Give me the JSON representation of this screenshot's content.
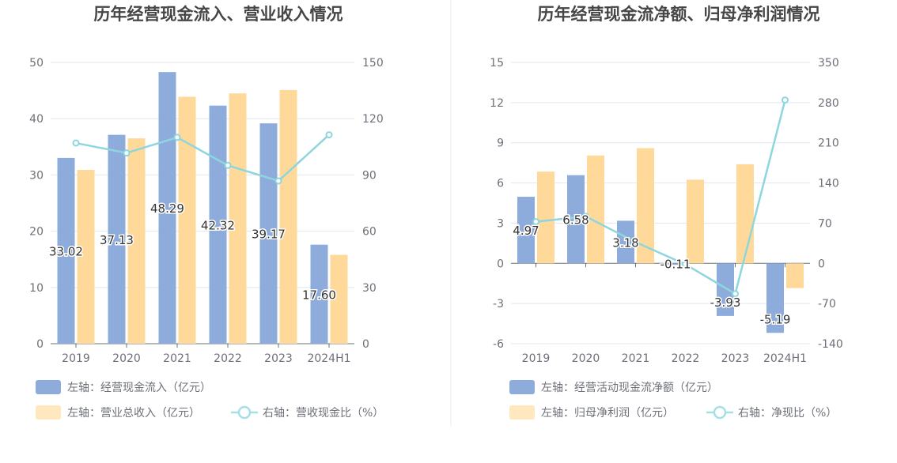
{
  "chart_data": [
    {
      "type": "bar",
      "title": "历年经营现金流入、营业收入情况",
      "categories": [
        "2019",
        "2020",
        "2021",
        "2022",
        "2023",
        "2024H1"
      ],
      "left_axis": {
        "ylim": [
          0,
          50
        ],
        "ticks": [
          "0",
          "10",
          "20",
          "30",
          "40",
          "50"
        ]
      },
      "right_axis": {
        "ylim": [
          0,
          150
        ],
        "ticks": [
          "0",
          "30",
          "60",
          "90",
          "120",
          "150"
        ]
      },
      "series": [
        {
          "name": "左轴：经营现金流入（亿元）",
          "kind": "bar",
          "axis": "left",
          "color": "#8eacdb",
          "values": [
            33.02,
            37.13,
            48.29,
            42.32,
            39.17,
            17.6
          ],
          "labels": [
            "33.02",
            "37.13",
            "48.29",
            "42.32",
            "39.17",
            "17.60"
          ]
        },
        {
          "name": "左轴：营业总收入（亿元）",
          "kind": "bar",
          "axis": "left",
          "color": "#ffd99a",
          "values": [
            30.9,
            36.5,
            43.9,
            44.5,
            45.1,
            15.8
          ]
        },
        {
          "name": "右轴：营收现金比（%）",
          "kind": "line",
          "axis": "right",
          "color": "#8dd6dd",
          "values": [
            107,
            101.7,
            110,
            95.1,
            86.8,
            111.4
          ]
        }
      ],
      "grid": true,
      "legend_position": "bottom-left"
    },
    {
      "type": "bar",
      "title": "历年经营现金流净额、归母净利润情况",
      "categories": [
        "2019",
        "2020",
        "2021",
        "2022",
        "2023",
        "2024H1"
      ],
      "left_axis": {
        "ylim": [
          -6,
          15
        ],
        "ticks": [
          "-6",
          "-3",
          "0",
          "3",
          "6",
          "9",
          "12",
          "15"
        ]
      },
      "right_axis": {
        "ylim": [
          -140,
          350
        ],
        "ticks": [
          "-140",
          "-70",
          "0",
          "70",
          "140",
          "210",
          "280",
          "350"
        ]
      },
      "series": [
        {
          "name": "左轴：经营活动现金流净额（亿元）",
          "kind": "bar",
          "axis": "left",
          "color": "#8eacdb",
          "values": [
            4.97,
            6.58,
            3.18,
            -0.11,
            -3.93,
            -5.19
          ],
          "labels": [
            "4.97",
            "6.58",
            "3.18",
            "-0.11",
            "-3.93",
            "-5.19"
          ]
        },
        {
          "name": "左轴：归母净利润（亿元）",
          "kind": "bar",
          "axis": "left",
          "color": "#ffd99a",
          "values": [
            6.85,
            8.05,
            8.6,
            6.25,
            7.4,
            -1.85
          ]
        },
        {
          "name": "右轴：净现比（%）",
          "kind": "line",
          "axis": "right",
          "color": "#8dd6dd",
          "values": [
            72.5,
            81.7,
            37,
            -1.8,
            -53,
            284.5
          ]
        }
      ],
      "grid": true,
      "legend_position": "bottom-left"
    }
  ]
}
